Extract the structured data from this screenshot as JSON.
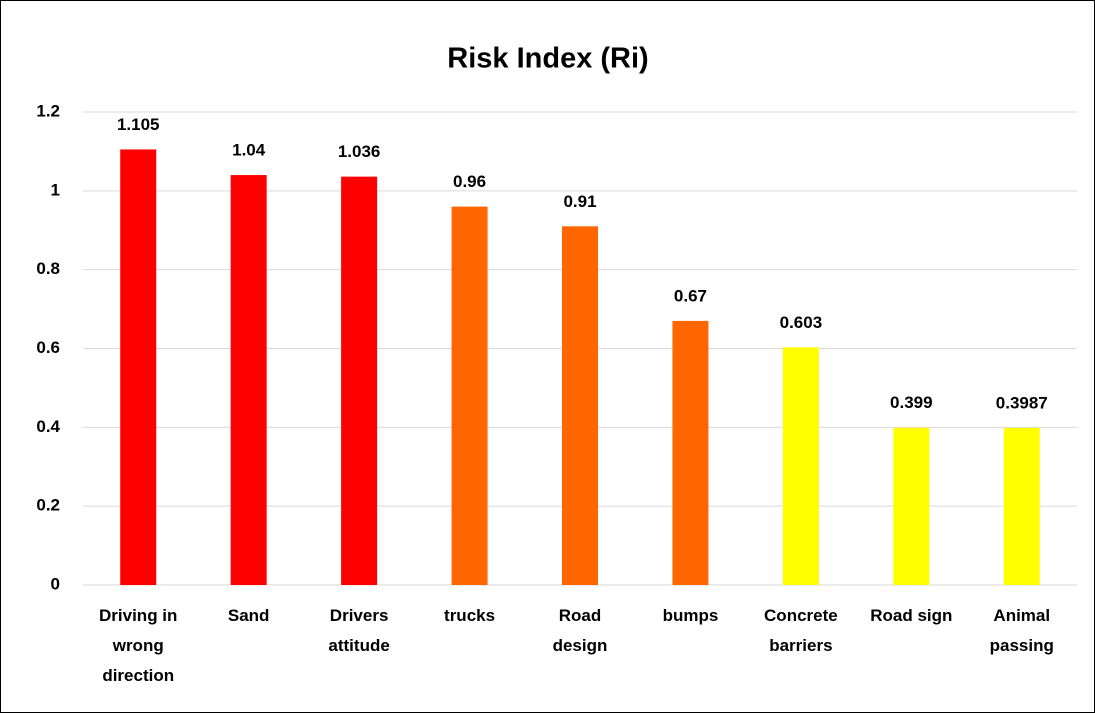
{
  "chart_data": {
    "type": "bar",
    "title": "Risk Index (Ri)",
    "categories": [
      "Driving in wrong direction",
      "Sand",
      "Drivers attitude",
      "trucks",
      "Road design",
      "bumps",
      "Concrete barriers",
      "Road sign",
      "Animal passing"
    ],
    "values": [
      1.105,
      1.04,
      1.036,
      0.96,
      0.91,
      0.67,
      0.603,
      0.399,
      0.3987
    ],
    "colors": [
      "#ff0000",
      "#ff0000",
      "#ff0000",
      "#ff6600",
      "#ff6600",
      "#ff6600",
      "#ffff00",
      "#ffff00",
      "#ffff00"
    ],
    "ylim": [
      0,
      1.2
    ],
    "yticks": [
      0,
      0.2,
      0.4,
      0.6,
      0.8,
      1,
      1.2
    ],
    "grid": true
  }
}
